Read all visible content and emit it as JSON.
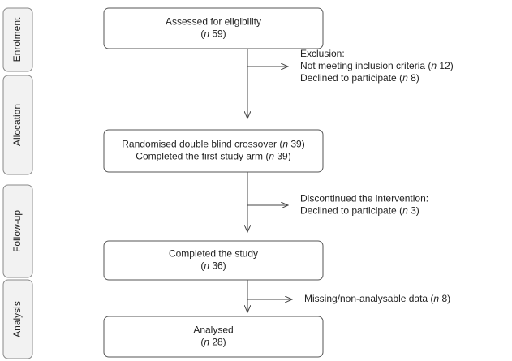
{
  "stages": [
    "Enrolment",
    "Allocation",
    "Follow-up",
    "Analysis"
  ],
  "boxes": [
    {
      "lines": [
        "Assessed for eligibility",
        "(n 59)"
      ]
    },
    {
      "lines": [
        "Randomised double blind crossover (n 39)",
        "Completed the first study arm (n 39)"
      ]
    },
    {
      "lines": [
        "Completed the study",
        "(n 36)"
      ]
    },
    {
      "lines": [
        "Analysed",
        "(n 28)"
      ]
    }
  ],
  "exclusions": [
    {
      "lines": [
        "Exclusion:",
        "Not meeting inclusion criteria (n 12)",
        "Declined to participate (n 8)"
      ]
    },
    {
      "lines": [
        "Discontinued the intervention:",
        "Declined to participate (n 3)"
      ]
    },
    {
      "lines": [
        "Missing/non-analysable data (n 8)"
      ]
    }
  ]
}
